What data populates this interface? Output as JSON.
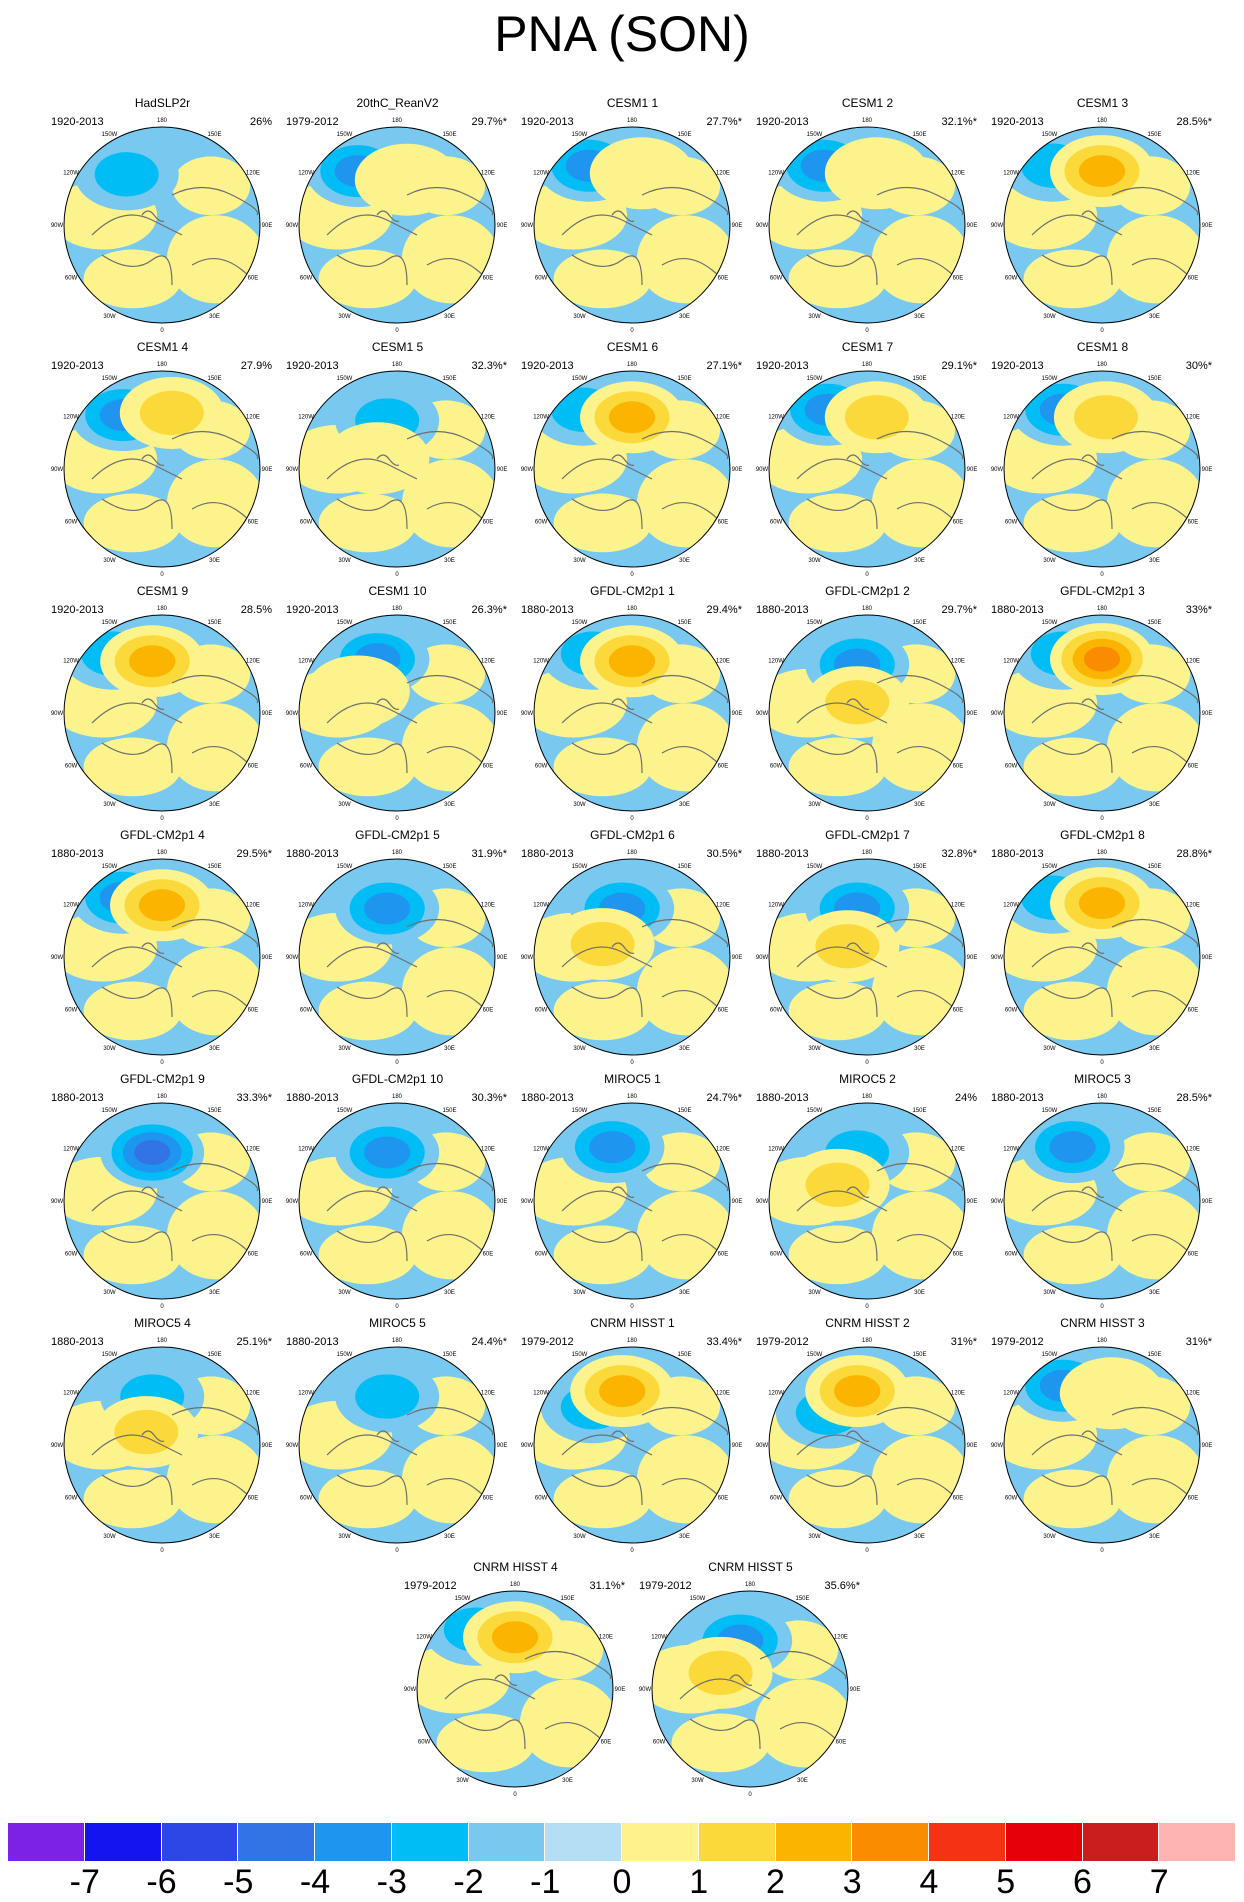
{
  "title": "PNA (SON)",
  "lon_labels": {
    "n180": "180",
    "n150w": "150W",
    "n150e": "150E",
    "n120w": "120W",
    "n120e": "120E",
    "n90w": "90W",
    "n90e": "90E",
    "n60w": "60W",
    "n60e": "60E",
    "n30w": "30W",
    "n30e": "30E",
    "n0": "0"
  },
  "panels": [
    {
      "title": "HadSLP2r",
      "period": "1920-2013",
      "variance": "26%",
      "pattern": {
        "neg_lat": 0.47,
        "neg_lon": 0.32,
        "neg_amp": 2,
        "pos_lat": 0.0,
        "pos_lon": 0.5,
        "pos_amp": 0
      }
    },
    {
      "title": "20thC_ReanV2",
      "period": "1979-2012",
      "variance": "29.7%*",
      "pattern": {
        "neg_lat": 0.5,
        "neg_lon": 0.3,
        "neg_amp": 3,
        "pos_lat": 0.42,
        "pos_lon": 0.55,
        "pos_amp": 1
      }
    },
    {
      "title": "CESM1 1",
      "period": "1920-2013",
      "variance": "27.7%*",
      "pattern": {
        "neg_lat": 0.55,
        "neg_lon": 0.28,
        "neg_amp": 3,
        "pos_lat": 0.48,
        "pos_lon": 0.55,
        "pos_amp": 1
      }
    },
    {
      "title": "CESM1 2",
      "period": "1920-2013",
      "variance": "32.1%*",
      "pattern": {
        "neg_lat": 0.55,
        "neg_lon": 0.28,
        "neg_amp": 3,
        "pos_lat": 0.48,
        "pos_lon": 0.55,
        "pos_amp": 1
      }
    },
    {
      "title": "CESM1 3",
      "period": "1920-2013",
      "variance": "28.5%*",
      "pattern": {
        "neg_lat": 0.55,
        "neg_lon": 0.25,
        "neg_amp": 2,
        "pos_lat": 0.5,
        "pos_lon": 0.5,
        "pos_amp": 3
      }
    },
    {
      "title": "CESM1 4",
      "period": "1920-2013",
      "variance": "27.9%",
      "pattern": {
        "neg_lat": 0.5,
        "neg_lon": 0.3,
        "neg_amp": 3,
        "pos_lat": 0.52,
        "pos_lon": 0.55,
        "pos_amp": 2
      }
    },
    {
      "title": "CESM1 5",
      "period": "1920-2013",
      "variance": "32.3%*",
      "pattern": {
        "neg_lat": 0.45,
        "neg_lon": 0.45,
        "neg_amp": 2,
        "pos_lat": 0.1,
        "pos_lon": 0.4,
        "pos_amp": 1
      }
    },
    {
      "title": "CESM1 6",
      "period": "1920-2013",
      "variance": "27.1%*",
      "pattern": {
        "neg_lat": 0.55,
        "neg_lon": 0.25,
        "neg_amp": 2,
        "pos_lat": 0.48,
        "pos_lon": 0.5,
        "pos_amp": 3
      }
    },
    {
      "title": "CESM1 7",
      "period": "1920-2013",
      "variance": "29.1%*",
      "pattern": {
        "neg_lat": 0.55,
        "neg_lon": 0.3,
        "neg_amp": 3,
        "pos_lat": 0.48,
        "pos_lon": 0.55,
        "pos_amp": 2
      }
    },
    {
      "title": "CESM1 8",
      "period": "1920-2013",
      "variance": "30%*",
      "pattern": {
        "neg_lat": 0.55,
        "neg_lon": 0.3,
        "neg_amp": 3,
        "pos_lat": 0.48,
        "pos_lon": 0.52,
        "pos_amp": 2
      }
    },
    {
      "title": "CESM1 9",
      "period": "1920-2013",
      "variance": "28.5%",
      "pattern": {
        "neg_lat": 0.55,
        "neg_lon": 0.25,
        "neg_amp": 2,
        "pos_lat": 0.48,
        "pos_lon": 0.45,
        "pos_amp": 3
      }
    },
    {
      "title": "CESM1 10",
      "period": "1920-2013",
      "variance": "26.3%*",
      "pattern": {
        "neg_lat": 0.5,
        "neg_lon": 0.4,
        "neg_amp": 3,
        "pos_lat": 0.2,
        "pos_lon": 0.3,
        "pos_amp": 1
      }
    },
    {
      "title": "GFDL-CM2p1 1",
      "period": "1880-2013",
      "variance": "29.4%*",
      "pattern": {
        "neg_lat": 0.55,
        "neg_lon": 0.3,
        "neg_amp": 2,
        "pos_lat": 0.48,
        "pos_lon": 0.5,
        "pos_amp": 3
      }
    },
    {
      "title": "GFDL-CM2p1 2",
      "period": "1880-2013",
      "variance": "29.7%*",
      "pattern": {
        "neg_lat": 0.45,
        "neg_lon": 0.45,
        "neg_amp": 3,
        "pos_lat": 0.1,
        "pos_lon": 0.45,
        "pos_amp": 2
      }
    },
    {
      "title": "GFDL-CM2p1 3",
      "period": "1880-2013",
      "variance": "33%*",
      "pattern": {
        "neg_lat": 0.55,
        "neg_lon": 0.3,
        "neg_amp": 2,
        "pos_lat": 0.5,
        "pos_lon": 0.5,
        "pos_amp": 4
      }
    },
    {
      "title": "GFDL-CM2p1 4",
      "period": "1880-2013",
      "variance": "29.5%*",
      "pattern": {
        "neg_lat": 0.55,
        "neg_lon": 0.3,
        "neg_amp": 3,
        "pos_lat": 0.48,
        "pos_lon": 0.5,
        "pos_amp": 3
      }
    },
    {
      "title": "GFDL-CM2p1 5",
      "period": "1880-2013",
      "variance": "31.9%*",
      "pattern": {
        "neg_lat": 0.45,
        "neg_lon": 0.45,
        "neg_amp": 3,
        "pos_lat": 0.0,
        "pos_lon": 0.5,
        "pos_amp": 0
      }
    },
    {
      "title": "GFDL-CM2p1 6",
      "period": "1880-2013",
      "variance": "30.5%*",
      "pattern": {
        "neg_lat": 0.45,
        "neg_lon": 0.45,
        "neg_amp": 3,
        "pos_lat": 0.12,
        "pos_lon": 0.35,
        "pos_amp": 2
      }
    },
    {
      "title": "GFDL-CM2p1 7",
      "period": "1880-2013",
      "variance": "32.8%*",
      "pattern": {
        "neg_lat": 0.45,
        "neg_lon": 0.45,
        "neg_amp": 3,
        "pos_lat": 0.1,
        "pos_lon": 0.4,
        "pos_amp": 2
      }
    },
    {
      "title": "GFDL-CM2p1 8",
      "period": "1880-2013",
      "variance": "28.8%*",
      "pattern": {
        "neg_lat": 0.55,
        "neg_lon": 0.25,
        "neg_amp": 2,
        "pos_lat": 0.5,
        "pos_lon": 0.5,
        "pos_amp": 3
      }
    },
    {
      "title": "GFDL-CM2p1 9",
      "period": "1880-2013",
      "variance": "33.3%*",
      "pattern": {
        "neg_lat": 0.45,
        "neg_lon": 0.45,
        "neg_amp": 4,
        "pos_lat": 0.0,
        "pos_lon": 0.5,
        "pos_amp": 0
      }
    },
    {
      "title": "GFDL-CM2p1 10",
      "period": "1880-2013",
      "variance": "30.3%*",
      "pattern": {
        "neg_lat": 0.45,
        "neg_lon": 0.45,
        "neg_amp": 3,
        "pos_lat": 0.0,
        "pos_lon": 0.5,
        "pos_amp": 0
      }
    },
    {
      "title": "MIROC5 1",
      "period": "1880-2013",
      "variance": "24.7%*",
      "pattern": {
        "neg_lat": 0.5,
        "neg_lon": 0.4,
        "neg_amp": 3,
        "pos_lat": 0.0,
        "pos_lon": 0.5,
        "pos_amp": 0
      }
    },
    {
      "title": "MIROC5 2",
      "period": "1880-2013",
      "variance": "24%",
      "pattern": {
        "neg_lat": 0.45,
        "neg_lon": 0.45,
        "neg_amp": 2,
        "pos_lat": 0.15,
        "pos_lon": 0.35,
        "pos_amp": 2
      }
    },
    {
      "title": "MIROC5 3",
      "period": "1880-2013",
      "variance": "28.5%*",
      "pattern": {
        "neg_lat": 0.5,
        "neg_lon": 0.35,
        "neg_amp": 3,
        "pos_lat": 0.0,
        "pos_lon": 0.5,
        "pos_amp": 0
      }
    },
    {
      "title": "MIROC5 4",
      "period": "1880-2013",
      "variance": "25.1%*",
      "pattern": {
        "neg_lat": 0.45,
        "neg_lon": 0.45,
        "neg_amp": 2,
        "pos_lat": 0.12,
        "pos_lon": 0.42,
        "pos_amp": 2
      }
    },
    {
      "title": "MIROC5 5",
      "period": "1880-2013",
      "variance": "24.4%*",
      "pattern": {
        "neg_lat": 0.45,
        "neg_lon": 0.45,
        "neg_amp": 2,
        "pos_lat": 0.0,
        "pos_lon": 0.5,
        "pos_amp": 0
      }
    },
    {
      "title": "CNRM HISST 1",
      "period": "1979-2012",
      "variance": "33.4%*",
      "pattern": {
        "neg_lat": 0.35,
        "neg_lon": 0.3,
        "neg_amp": 2,
        "pos_lat": 0.5,
        "pos_lon": 0.45,
        "pos_amp": 3
      }
    },
    {
      "title": "CNRM HISST 2",
      "period": "1979-2012",
      "variance": "31%*",
      "pattern": {
        "neg_lat": 0.3,
        "neg_lon": 0.3,
        "neg_amp": 2,
        "pos_lat": 0.5,
        "pos_lon": 0.45,
        "pos_amp": 3
      }
    },
    {
      "title": "CNRM HISST 3",
      "period": "1979-2012",
      "variance": "31%*",
      "pattern": {
        "neg_lat": 0.55,
        "neg_lon": 0.3,
        "neg_amp": 3,
        "pos_lat": 0.48,
        "pos_lon": 0.55,
        "pos_amp": 1
      }
    },
    {
      "title": "CNRM HISST 4",
      "period": "1979-2012",
      "variance": "31.1%*",
      "pattern": {
        "neg_lat": 0.55,
        "neg_lon": 0.3,
        "neg_amp": 2,
        "pos_lat": 0.48,
        "pos_lon": 0.5,
        "pos_amp": 3
      }
    },
    {
      "title": "CNRM HISST 5",
      "period": "1979-2012",
      "variance": "35.6%*",
      "pattern": {
        "neg_lat": 0.45,
        "neg_lon": 0.45,
        "neg_amp": 3,
        "pos_lat": 0.15,
        "pos_lon": 0.35,
        "pos_amp": 2
      }
    }
  ],
  "colorbar": {
    "colors": [
      "#7b22e6",
      "#1414f0",
      "#2d46e6",
      "#3274e6",
      "#1e96f0",
      "#00bef5",
      "#78c8f0",
      "#b4def4",
      "#fdf38c",
      "#fcd93a",
      "#fbb400",
      "#fa8c00",
      "#f53214",
      "#e6000a",
      "#c81e1e",
      "#ffb4b4"
    ],
    "labels": [
      "-7",
      "-6",
      "-5",
      "-4",
      "-3",
      "-2",
      "-1",
      "0",
      "1",
      "2",
      "3",
      "4",
      "5",
      "6",
      "7"
    ]
  }
}
